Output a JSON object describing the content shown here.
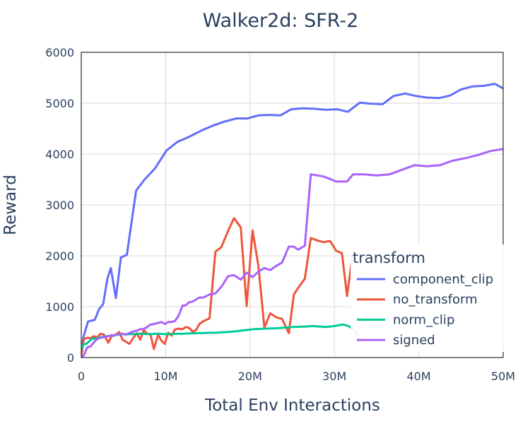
{
  "chart_data": {
    "type": "line",
    "title": "Walker2d: SFR-2",
    "xlabel": "Total Env Interactions",
    "ylabel": "Reward",
    "xlim": [
      0,
      50000000
    ],
    "ylim": [
      0,
      6000
    ],
    "x_ticks": [
      {
        "value": 0,
        "label": "0"
      },
      {
        "value": 10000000,
        "label": "10M"
      },
      {
        "value": 20000000,
        "label": "20M"
      },
      {
        "value": 30000000,
        "label": "30M"
      },
      {
        "value": 40000000,
        "label": "40M"
      },
      {
        "value": 50000000,
        "label": "50M"
      }
    ],
    "y_ticks": [
      {
        "value": 0,
        "label": "0"
      },
      {
        "value": 1000,
        "label": "1000"
      },
      {
        "value": 2000,
        "label": "2000"
      },
      {
        "value": 3000,
        "label": "3000"
      },
      {
        "value": 4000,
        "label": "4000"
      },
      {
        "value": 5000,
        "label": "5000"
      },
      {
        "value": 6000,
        "label": "6000"
      }
    ],
    "grid": true,
    "legend": {
      "title": "transform",
      "placement": "bottom-right"
    },
    "series": [
      {
        "name": "component_clip",
        "color": "#636efa",
        "x": [
          0,
          250000,
          800000,
          1600000,
          2100000,
          2600000,
          3100000,
          3500000,
          4100000,
          4700000,
          5400000,
          6500000,
          7500000,
          8700000,
          10100000,
          11400000,
          12800000,
          14200000,
          15600000,
          17000000,
          18400000,
          19700000,
          21000000,
          22300000,
          23600000,
          24900000,
          26200000,
          27600000,
          29000000,
          30300000,
          31600000,
          33000000,
          34300000,
          35700000,
          37000000,
          38400000,
          39700000,
          41000000,
          42400000,
          43700000,
          45000000,
          46400000,
          47700000,
          49000000,
          50000000
        ],
        "values": [
          140,
          400,
          710,
          740,
          950,
          1050,
          1550,
          1760,
          1170,
          1970,
          2020,
          3280,
          3500,
          3710,
          4070,
          4240,
          4340,
          4460,
          4560,
          4640,
          4700,
          4700,
          4760,
          4770,
          4760,
          4880,
          4900,
          4890,
          4870,
          4880,
          4830,
          5010,
          4990,
          4980,
          5140,
          5190,
          5140,
          5110,
          5100,
          5150,
          5270,
          5330,
          5340,
          5380,
          5290
        ]
      },
      {
        "name": "no_transform",
        "color": "#ef553b",
        "x": [
          0,
          300000,
          700000,
          1100000,
          1500000,
          1900000,
          2300000,
          2700000,
          3200000,
          3600000,
          4000000,
          4500000,
          4900000,
          5300000,
          5700000,
          6100000,
          6600000,
          7000000,
          7400000,
          7800000,
          8200000,
          8600000,
          9100000,
          9500000,
          9900000,
          10300000,
          10700000,
          11100000,
          11500000,
          12000000,
          12400000,
          12800000,
          13200000,
          13600000,
          14000000,
          14500000,
          15200000,
          15900000,
          16600000,
          17400000,
          18100000,
          18900000,
          19600000,
          20300000,
          21000000,
          21700000,
          22400000,
          23100000,
          23800000,
          24600000,
          25200000,
          25700000,
          26500000,
          27200000,
          28000000,
          28700000,
          29500000,
          30200000,
          30900000,
          31500000,
          32200000
        ],
        "values": [
          20,
          360,
          390,
          380,
          420,
          400,
          470,
          450,
          290,
          420,
          440,
          500,
          350,
          310,
          270,
          370,
          480,
          350,
          540,
          470,
          460,
          170,
          450,
          330,
          270,
          490,
          430,
          550,
          570,
          560,
          600,
          580,
          510,
          540,
          660,
          720,
          770,
          2080,
          2170,
          2490,
          2740,
          2560,
          1010,
          2500,
          1800,
          590,
          870,
          790,
          760,
          480,
          1240,
          1370,
          1550,
          2350,
          2300,
          2270,
          2290,
          2100,
          2050,
          1210,
          2080
        ]
      },
      {
        "name": "norm_clip",
        "color": "#00cc96",
        "x": [
          0,
          250000,
          600000,
          1200000,
          2000000,
          3000000,
          4000000,
          5000000,
          6000000,
          7000000,
          8000000,
          9000000,
          10000000,
          12000000,
          14000000,
          16000000,
          18000000,
          19500000,
          20500000,
          22000000,
          23500000,
          25000000,
          26500000,
          27500000,
          29000000,
          30000000,
          31000000,
          31700000,
          32300000,
          32800000
        ],
        "values": [
          150,
          260,
          270,
          360,
          390,
          420,
          440,
          460,
          460,
          470,
          460,
          470,
          460,
          470,
          480,
          490,
          510,
          540,
          560,
          570,
          580,
          600,
          610,
          620,
          600,
          620,
          650,
          620,
          540,
          440
        ]
      },
      {
        "name": "signed",
        "color": "#ab63fa",
        "x": [
          0,
          300000,
          700000,
          1100000,
          1500000,
          1900000,
          2300000,
          2700000,
          3200000,
          3600000,
          4000000,
          4500000,
          4900000,
          5300000,
          5700000,
          6100000,
          6600000,
          7000000,
          7400000,
          7800000,
          8200000,
          8600000,
          9100000,
          9500000,
          9900000,
          10300000,
          10700000,
          11100000,
          11500000,
          12000000,
          12400000,
          12800000,
          13200000,
          13600000,
          14000000,
          14500000,
          15200000,
          15900000,
          16600000,
          17400000,
          18100000,
          18900000,
          19600000,
          20300000,
          21000000,
          21700000,
          22400000,
          23100000,
          23800000,
          24600000,
          25200000,
          25700000,
          26500000,
          27200000,
          28000000,
          28700000,
          29500000,
          30200000,
          30900000,
          31500000,
          32200000,
          33500000,
          35000000,
          36500000,
          38000000,
          39500000,
          41000000,
          42500000,
          44000000,
          45500000,
          47000000,
          48500000,
          50000000
        ],
        "values": [
          20,
          40,
          200,
          220,
          300,
          370,
          390,
          400,
          420,
          440,
          440,
          460,
          470,
          450,
          480,
          510,
          530,
          560,
          560,
          600,
          650,
          660,
          680,
          700,
          660,
          700,
          700,
          720,
          810,
          1020,
          1030,
          1090,
          1100,
          1140,
          1180,
          1180,
          1240,
          1260,
          1390,
          1600,
          1620,
          1530,
          1670,
          1580,
          1690,
          1760,
          1720,
          1800,
          1870,
          2180,
          2180,
          2120,
          2200,
          3600,
          3580,
          3560,
          3510,
          3460,
          3460,
          3460,
          3600,
          3600,
          3580,
          3600,
          3690,
          3780,
          3760,
          3780,
          3870,
          3920,
          3980,
          4060,
          4100
        ]
      }
    ]
  }
}
